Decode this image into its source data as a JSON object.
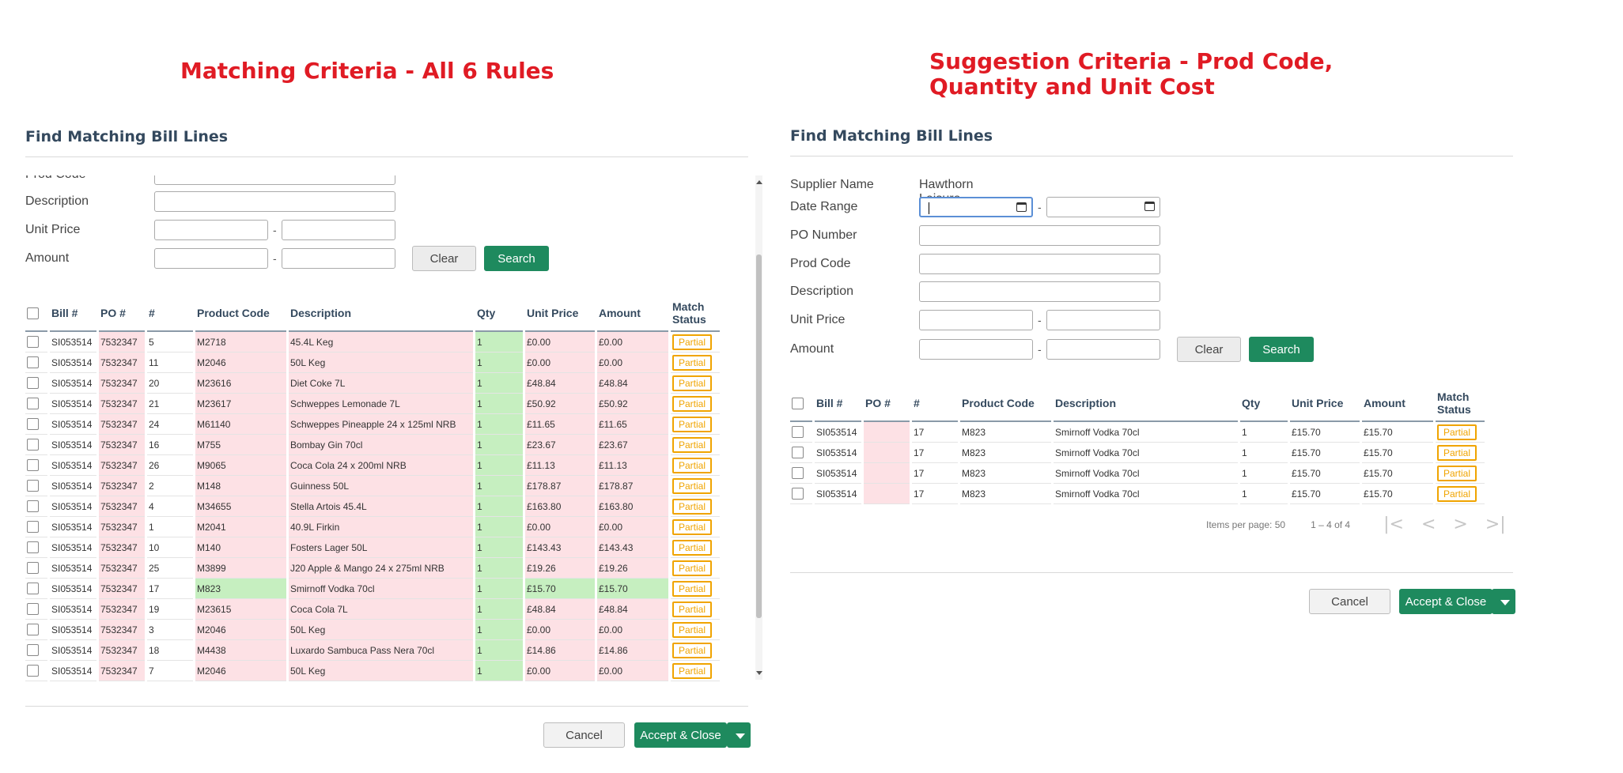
{
  "headings": {
    "left": "Matching Criteria - All 6 Rules",
    "right": "Suggestion Criteria - Prod Code,\nQuantity and Unit Cost"
  },
  "left": {
    "title": "Find Matching Bill Lines",
    "form": {
      "prod_code_label": "Prod Code",
      "description_label": "Description",
      "unit_price_label": "Unit Price",
      "amount_label": "Amount",
      "range_sep": "-",
      "clear_label": "Clear",
      "search_label": "Search"
    },
    "columns": [
      "Bill #",
      "PO #",
      "#",
      "Product Code",
      "Description",
      "Qty",
      "Unit Price",
      "Amount",
      "Match Status"
    ],
    "rows": [
      {
        "bill": "SI053514",
        "po": "7532347",
        "num": "5",
        "code": "M2718",
        "desc": "45.4L Keg",
        "qty": "1",
        "price": "£0.00",
        "amount": "£0.00",
        "status": "Partial"
      },
      {
        "bill": "SI053514",
        "po": "7532347",
        "num": "11",
        "code": "M2046",
        "desc": "50L Keg",
        "qty": "1",
        "price": "£0.00",
        "amount": "£0.00",
        "status": "Partial"
      },
      {
        "bill": "SI053514",
        "po": "7532347",
        "num": "20",
        "code": "M23616",
        "desc": "Diet Coke 7L",
        "qty": "1",
        "price": "£48.84",
        "amount": "£48.84",
        "status": "Partial"
      },
      {
        "bill": "SI053514",
        "po": "7532347",
        "num": "21",
        "code": "M23617",
        "desc": "Schweppes Lemonade 7L",
        "qty": "1",
        "price": "£50.92",
        "amount": "£50.92",
        "status": "Partial"
      },
      {
        "bill": "SI053514",
        "po": "7532347",
        "num": "24",
        "code": "M61140",
        "desc": "Schweppes Pineapple 24 x 125ml NRB",
        "qty": "1",
        "price": "£11.65",
        "amount": "£11.65",
        "status": "Partial"
      },
      {
        "bill": "SI053514",
        "po": "7532347",
        "num": "16",
        "code": "M755",
        "desc": "Bombay Gin 70cl",
        "qty": "1",
        "price": "£23.67",
        "amount": "£23.67",
        "status": "Partial"
      },
      {
        "bill": "SI053514",
        "po": "7532347",
        "num": "26",
        "code": "M9065",
        "desc": "Coca Cola 24 x 200ml NRB",
        "qty": "1",
        "price": "£11.13",
        "amount": "£11.13",
        "status": "Partial"
      },
      {
        "bill": "SI053514",
        "po": "7532347",
        "num": "2",
        "code": "M148",
        "desc": "Guinness 50L",
        "qty": "1",
        "price": "£178.87",
        "amount": "£178.87",
        "status": "Partial"
      },
      {
        "bill": "SI053514",
        "po": "7532347",
        "num": "4",
        "code": "M34655",
        "desc": "Stella Artois 45.4L",
        "qty": "1",
        "price": "£163.80",
        "amount": "£163.80",
        "status": "Partial"
      },
      {
        "bill": "SI053514",
        "po": "7532347",
        "num": "1",
        "code": "M2041",
        "desc": "40.9L Firkin",
        "qty": "1",
        "price": "£0.00",
        "amount": "£0.00",
        "status": "Partial"
      },
      {
        "bill": "SI053514",
        "po": "7532347",
        "num": "10",
        "code": "M140",
        "desc": "Fosters Lager 50L",
        "qty": "1",
        "price": "£143.43",
        "amount": "£143.43",
        "status": "Partial"
      },
      {
        "bill": "SI053514",
        "po": "7532347",
        "num": "25",
        "code": "M3899",
        "desc": "J20 Apple & Mango 24 x 275ml NRB",
        "qty": "1",
        "price": "£19.26",
        "amount": "£19.26",
        "status": "Partial"
      },
      {
        "bill": "SI053514",
        "po": "7532347",
        "num": "17",
        "code": "M823",
        "desc": "Smirnoff Vodka 70cl",
        "qty": "1",
        "price": "£15.70",
        "amount": "£15.70",
        "status": "Partial",
        "match": true
      },
      {
        "bill": "SI053514",
        "po": "7532347",
        "num": "19",
        "code": "M23615",
        "desc": "Coca Cola 7L",
        "qty": "1",
        "price": "£48.84",
        "amount": "£48.84",
        "status": "Partial"
      },
      {
        "bill": "SI053514",
        "po": "7532347",
        "num": "3",
        "code": "M2046",
        "desc": "50L Keg",
        "qty": "1",
        "price": "£0.00",
        "amount": "£0.00",
        "status": "Partial"
      },
      {
        "bill": "SI053514",
        "po": "7532347",
        "num": "18",
        "code": "M4438",
        "desc": "Luxardo Sambuca Pass Nera 70cl",
        "qty": "1",
        "price": "£14.86",
        "amount": "£14.86",
        "status": "Partial"
      },
      {
        "bill": "SI053514",
        "po": "7532347",
        "num": "7",
        "code": "M2046",
        "desc": "50L Keg",
        "qty": "1",
        "price": "£0.00",
        "amount": "£0.00",
        "status": "Partial"
      }
    ],
    "cancel_label": "Cancel",
    "accept_label": "Accept & Close"
  },
  "right": {
    "title": "Find Matching Bill Lines",
    "form": {
      "supplier_label": "Supplier Name",
      "supplier_value": "Hawthorn Leisure Ltd",
      "date_label": "Date Range",
      "po_label": "PO Number",
      "prod_code_label": "Prod Code",
      "description_label": "Description",
      "unit_price_label": "Unit Price",
      "amount_label": "Amount",
      "range_sep": "-",
      "clear_label": "Clear",
      "search_label": "Search"
    },
    "columns": [
      "Bill #",
      "PO #",
      "#",
      "Product Code",
      "Description",
      "Qty",
      "Unit Price",
      "Amount",
      "Match Status"
    ],
    "rows": [
      {
        "bill": "SI053514",
        "po": "",
        "num": "17",
        "code": "M823",
        "desc": "Smirnoff Vodka 70cl",
        "qty": "1",
        "price": "£15.70",
        "amount": "£15.70",
        "status": "Partial"
      },
      {
        "bill": "SI053514",
        "po": "",
        "num": "17",
        "code": "M823",
        "desc": "Smirnoff Vodka 70cl",
        "qty": "1",
        "price": "£15.70",
        "amount": "£15.70",
        "status": "Partial"
      },
      {
        "bill": "SI053514",
        "po": "",
        "num": "17",
        "code": "M823",
        "desc": "Smirnoff Vodka 70cl",
        "qty": "1",
        "price": "£15.70",
        "amount": "£15.70",
        "status": "Partial"
      },
      {
        "bill": "SI053514",
        "po": "",
        "num": "17",
        "code": "M823",
        "desc": "Smirnoff Vodka 70cl",
        "qty": "1",
        "price": "£15.70",
        "amount": "£15.70",
        "status": "Partial"
      }
    ],
    "pager": {
      "items_per_page": "Items per page: 50",
      "range": "1 – 4 of 4"
    },
    "cancel_label": "Cancel",
    "accept_label": "Accept & Close"
  }
}
